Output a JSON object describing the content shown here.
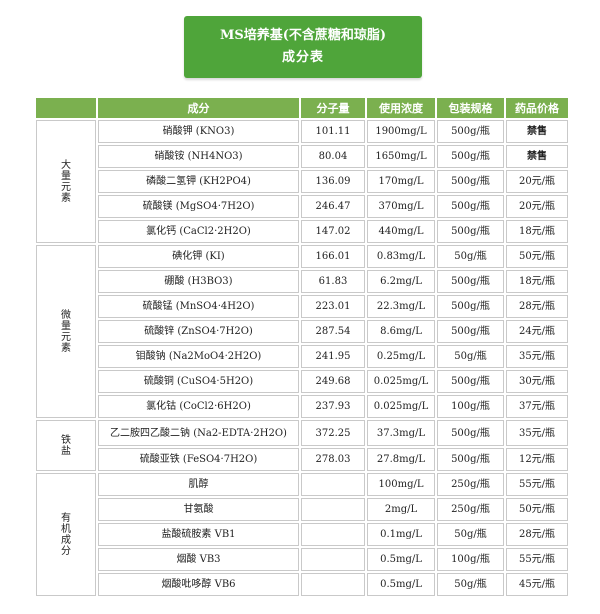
{
  "header": {
    "title_line1": "MS培养基(不含蔗糖和琼脂)",
    "title_line2": "成分表"
  },
  "columns": [
    "成分",
    "分子量",
    "使用浓度",
    "包装规格",
    "药品价格"
  ],
  "groups": [
    {
      "category": [
        "大",
        "量",
        "元",
        "素"
      ],
      "rows": [
        {
          "name": "硝酸钾  (KNO3)",
          "mw": "101.11",
          "conc": "1900mg/L",
          "pack": "500g/瓶",
          "price": "禁售"
        },
        {
          "name": "硝酸铵  (NH4NO3)",
          "mw": "80.04",
          "conc": "1650mg/L",
          "pack": "500g/瓶",
          "price": "禁售"
        },
        {
          "name": "磷酸二氢钾  (KH2PO4)",
          "mw": "136.09",
          "conc": "170mg/L",
          "pack": "500g/瓶",
          "price": "20元/瓶"
        },
        {
          "name": "硫酸镁  (MgSO4·7H2O)",
          "mw": "246.47",
          "conc": "370mg/L",
          "pack": "500g/瓶",
          "price": "20元/瓶"
        },
        {
          "name": "氯化钙  (CaCl2·2H2O)",
          "mw": "147.02",
          "conc": "440mg/L",
          "pack": "500g/瓶",
          "price": "18元/瓶"
        }
      ]
    },
    {
      "category": [
        "微",
        "量",
        "元",
        "素"
      ],
      "rows": [
        {
          "name": "碘化钾  (KI)",
          "mw": "166.01",
          "conc": "0.83mg/L",
          "pack": "50g/瓶",
          "price": "50元/瓶"
        },
        {
          "name": "硼酸  (H3BO3)",
          "mw": "61.83",
          "conc": "6.2mg/L",
          "pack": "500g/瓶",
          "price": "18元/瓶"
        },
        {
          "name": "硫酸锰  (MnSO4·4H2O)",
          "mw": "223.01",
          "conc": "22.3mg/L",
          "pack": "500g/瓶",
          "price": "28元/瓶"
        },
        {
          "name": "硫酸锌  (ZnSO4·7H2O)",
          "mw": "287.54",
          "conc": "8.6mg/L",
          "pack": "500g/瓶",
          "price": "24元/瓶"
        },
        {
          "name": "钼酸钠  (Na2MoO4·2H2O)",
          "mw": "241.95",
          "conc": "0.25mg/L",
          "pack": "50g/瓶",
          "price": "35元/瓶"
        },
        {
          "name": "硫酸铜  (CuSO4·5H2O)",
          "mw": "249.68",
          "conc": "0.025mg/L",
          "pack": "500g/瓶",
          "price": "30元/瓶"
        },
        {
          "name": "氯化钴  (CoCl2·6H2O)",
          "mw": "237.93",
          "conc": "0.025mg/L",
          "pack": "100g/瓶",
          "price": "37元/瓶"
        }
      ]
    },
    {
      "category": [
        "铁",
        "盐"
      ],
      "rows": [
        {
          "name": "乙二胺四乙酸二钠  (Na2-EDTA·2H2O)",
          "mw": "372.25",
          "conc": "37.3mg/L",
          "pack": "500g/瓶",
          "price": "35元/瓶"
        },
        {
          "name": "硫酸亚铁  (FeSO4·7H2O)",
          "mw": "278.03",
          "conc": "27.8mg/L",
          "pack": "500g/瓶",
          "price": "12元/瓶"
        }
      ]
    },
    {
      "category": [
        "有",
        "机",
        "成",
        "分"
      ],
      "rows": [
        {
          "name": "肌醇",
          "mw": "",
          "conc": "100mg/L",
          "pack": "250g/瓶",
          "price": "55元/瓶"
        },
        {
          "name": "甘氨酸",
          "mw": "",
          "conc": "2mg/L",
          "pack": "250g/瓶",
          "price": "50元/瓶"
        },
        {
          "name": "盐酸硫胺素 VB1",
          "mw": "",
          "conc": "0.1mg/L",
          "pack": "50g/瓶",
          "price": "28元/瓶"
        },
        {
          "name": "烟酸 VB3",
          "mw": "",
          "conc": "0.5mg/L",
          "pack": "100g/瓶",
          "price": "55元/瓶"
        },
        {
          "name": "烟酸吡哆醇 VB6",
          "mw": "",
          "conc": "0.5mg/L",
          "pack": "50g/瓶",
          "price": "45元/瓶"
        }
      ]
    }
  ]
}
